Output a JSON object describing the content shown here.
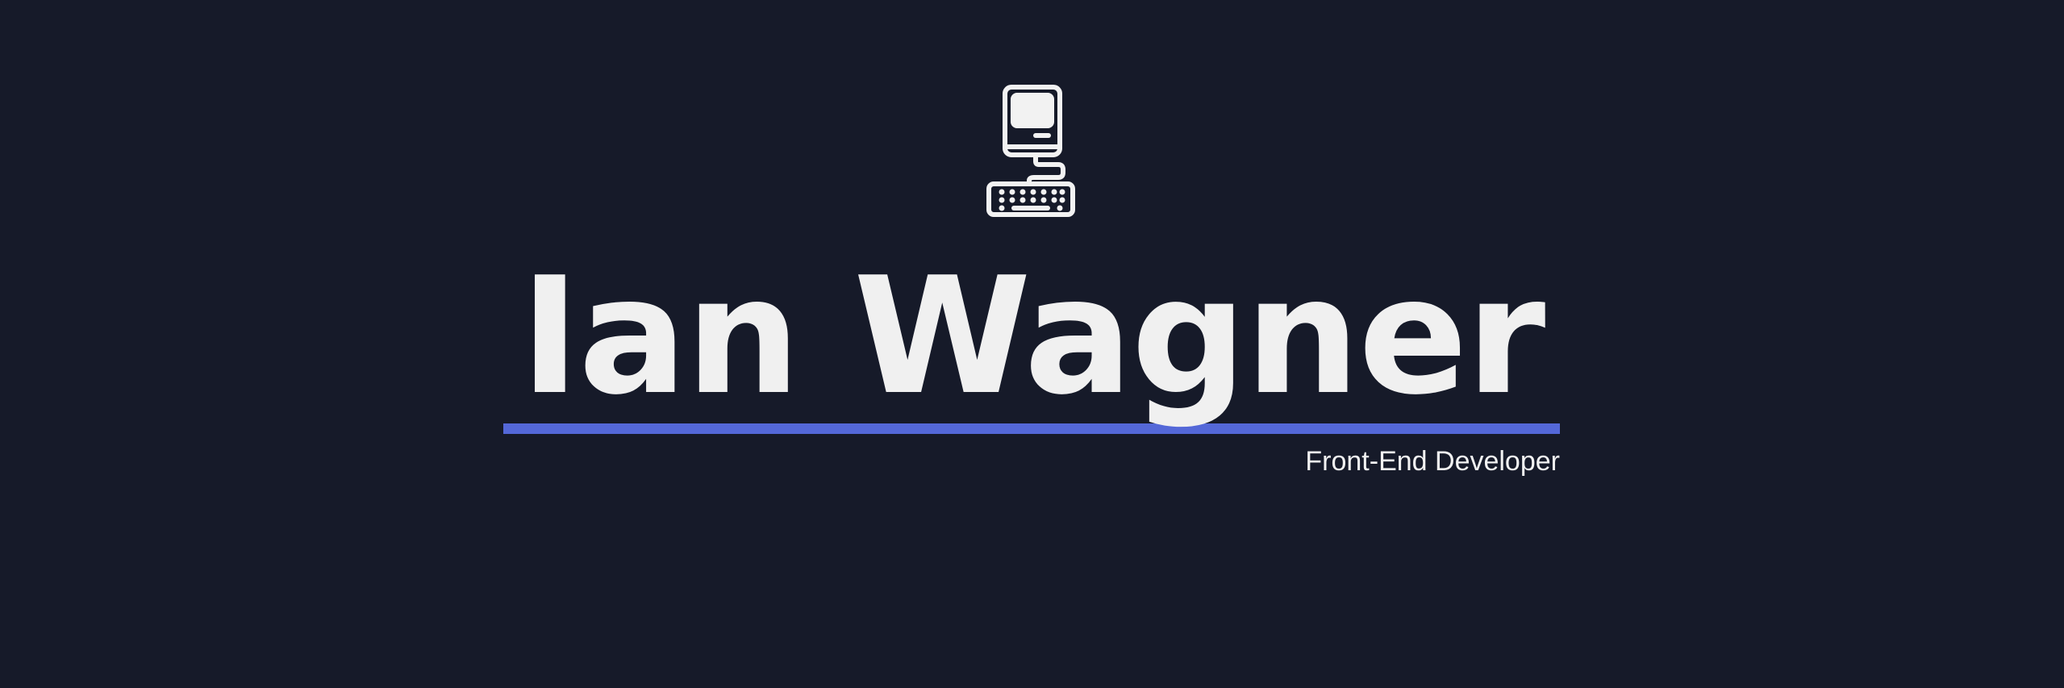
{
  "banner": {
    "name": "Ian Wagner",
    "subtitle": "Front-End Developer",
    "icon": "retro-computer-icon"
  },
  "colors": {
    "background": "#161a29",
    "accent_bar": "#5468d8",
    "text": "#f0f0f0"
  }
}
